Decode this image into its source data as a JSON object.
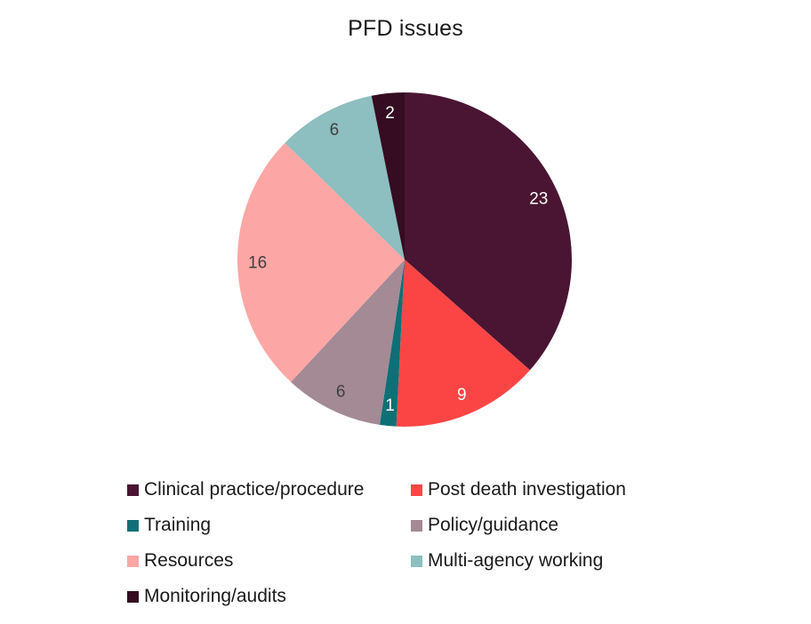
{
  "chart_data": {
    "type": "pie",
    "title": "PFD issues",
    "total": 63,
    "start_angle_deg": 0,
    "direction": "clockwise",
    "legend_position": "bottom",
    "background_color": "#ffffff",
    "title_color": "#1a1a1a",
    "legend_text_color": "#1a1a1a",
    "slices": [
      {
        "label": "Clinical practice/procedure",
        "value": 23,
        "color": "#4A1532",
        "label_color": "#ffffff"
      },
      {
        "label": "Post death investigation",
        "value": 9,
        "color": "#FB4545",
        "label_color": "#ffffff"
      },
      {
        "label": "Training",
        "value": 1,
        "color": "#0F6F76",
        "label_color": "#ffffff"
      },
      {
        "label": "Policy/guidance",
        "value": 6,
        "color": "#A38A95",
        "label_color": "#404040"
      },
      {
        "label": "Resources",
        "value": 16,
        "color": "#FCA7A5",
        "label_color": "#404040"
      },
      {
        "label": "Multi-agency working",
        "value": 6,
        "color": "#8DBEC0",
        "label_color": "#404040"
      },
      {
        "label": "Monitoring/audits",
        "value": 2,
        "color": "#350C21",
        "label_color": "#ffffff"
      }
    ]
  }
}
